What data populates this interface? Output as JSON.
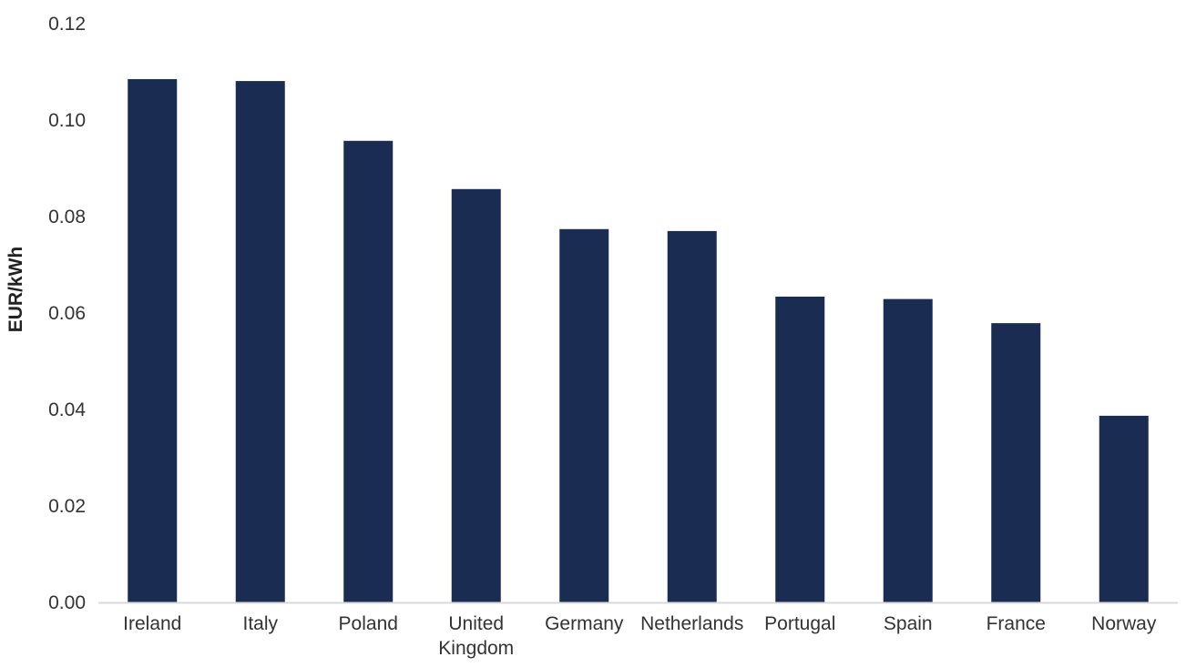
{
  "chart_data": {
    "type": "bar",
    "title": "",
    "xlabel": "",
    "ylabel": "EUR/kWh",
    "ylim": [
      0,
      0.12
    ],
    "yticks": [
      "0.00",
      "0.02",
      "0.04",
      "0.06",
      "0.08",
      "0.10",
      "0.12"
    ],
    "grid": false,
    "legend": "none",
    "bar_color": "#1a2c52",
    "axis_color": "#d9d9d9",
    "categories": [
      [
        "Ireland"
      ],
      [
        "Italy"
      ],
      [
        "Poland"
      ],
      [
        "United",
        "Kingdom"
      ],
      [
        "Germany"
      ],
      [
        "Netherlands"
      ],
      [
        "Portugal"
      ],
      [
        "Spain"
      ],
      [
        "France"
      ],
      [
        "Norway"
      ]
    ],
    "values": [
      0.1085,
      0.1081,
      0.0957,
      0.0857,
      0.0774,
      0.077,
      0.0634,
      0.0629,
      0.0579,
      0.0387
    ]
  }
}
